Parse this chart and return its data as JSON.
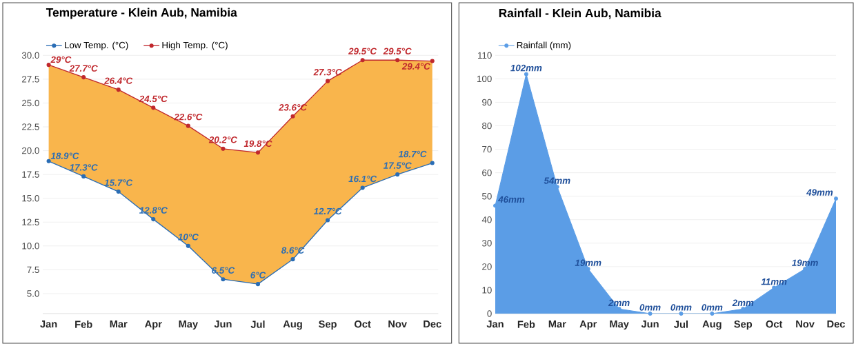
{
  "chart_data": [
    {
      "type": "line",
      "title": "Temperature - Klein Aub, Namibia",
      "categories": [
        "Jan",
        "Feb",
        "Mar",
        "Apr",
        "May",
        "Jun",
        "Jul",
        "Aug",
        "Sep",
        "Oct",
        "Nov",
        "Dec"
      ],
      "series": [
        {
          "name": "Low Temp. (°C)",
          "color": "#2a6db5",
          "values": [
            18.9,
            17.3,
            15.7,
            12.8,
            10,
            6.5,
            6,
            8.6,
            12.7,
            16.1,
            17.5,
            18.7
          ],
          "value_labels": [
            "18.9°C",
            "17.3°C",
            "15.7°C",
            "12.8°C",
            "10°C",
            "6.5°C",
            "6°C",
            "8.6°C",
            "12.7°C",
            "16.1°C",
            "17.5°C",
            "18.7°C"
          ]
        },
        {
          "name": "High Temp. (°C)",
          "color": "#c0282d",
          "values": [
            29,
            27.7,
            26.4,
            24.5,
            22.6,
            20.2,
            19.8,
            23.6,
            27.3,
            29.5,
            29.5,
            29.4
          ],
          "value_labels": [
            "29°C",
            "27.7°C",
            "26.4°C",
            "24.5°C",
            "22.6°C",
            "20.2°C",
            "19.8°C",
            "23.6°C",
            "27.3°C",
            "29.5°C",
            "29.5°C",
            "29.4°C"
          ]
        }
      ],
      "ylim": [
        2.9,
        30
      ],
      "yticks": [
        {
          "value": 5,
          "label": "5.0"
        },
        {
          "value": 7.5,
          "label": "7.5"
        },
        {
          "value": 10,
          "label": "10.0"
        },
        {
          "value": 12.5,
          "label": "12.5"
        },
        {
          "value": 15,
          "label": "15.0"
        },
        {
          "value": 17.5,
          "label": "17.5"
        },
        {
          "value": 20,
          "label": "20.0"
        },
        {
          "value": 22.5,
          "label": "22.5"
        },
        {
          "value": 25,
          "label": "25.0"
        },
        {
          "value": 27.5,
          "label": "27.5"
        },
        {
          "value": 30,
          "label": "30.0"
        }
      ],
      "grid": "y",
      "legend": "top left",
      "marker": "circle",
      "line_style": "solid"
    },
    {
      "type": "area",
      "title": "Rainfall - Klein Aub, Namibia",
      "categories": [
        "Jan",
        "Feb",
        "Mar",
        "Apr",
        "May",
        "Jun",
        "Jul",
        "Aug",
        "Sep",
        "Oct",
        "Nov",
        "Dec"
      ],
      "series": [
        {
          "name": "Rainfall (mm)",
          "color": "#5b9de6",
          "values": [
            46,
            102,
            54,
            19,
            2,
            0,
            0,
            0,
            2,
            11,
            19,
            49
          ],
          "value_labels": [
            "46mm",
            "102mm",
            "54mm",
            "19mm",
            "2mm",
            "0mm",
            "0mm",
            "0mm",
            "2mm",
            "11mm",
            "19mm",
            "49mm"
          ]
        }
      ],
      "ylim": [
        0,
        110
      ],
      "yticks": [
        0,
        10,
        20,
        30,
        40,
        50,
        60,
        70,
        80,
        90,
        100,
        110
      ],
      "grid": "y",
      "legend": "top left",
      "marker": "circle"
    }
  ]
}
